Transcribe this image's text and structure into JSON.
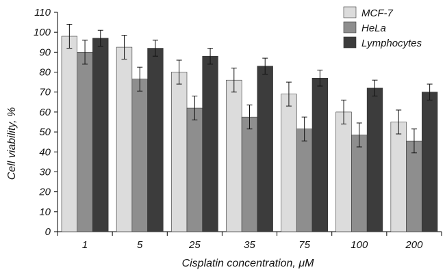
{
  "chart_data": {
    "type": "bar",
    "title": "",
    "xlabel": "Cisplatin concentration, μM",
    "ylabel": "Cell viability, %",
    "categories": [
      "1",
      "5",
      "25",
      "35",
      "75",
      "100",
      "200"
    ],
    "ylim": [
      0,
      110
    ],
    "yticks": [
      0,
      10,
      20,
      30,
      40,
      50,
      60,
      70,
      80,
      90,
      100,
      110
    ],
    "legend_position": "top-right",
    "grid": false,
    "error_bars": true,
    "series": [
      {
        "name": "MCF-7",
        "color": "#dcdcdc",
        "values": [
          98,
          92.5,
          80,
          76,
          69,
          60,
          55
        ],
        "errors": [
          6,
          6,
          6,
          6,
          6,
          6,
          6
        ]
      },
      {
        "name": "HeLa",
        "color": "#8e8e8e",
        "values": [
          90,
          76.5,
          62,
          57.5,
          51.5,
          48.5,
          45.5
        ],
        "errors": [
          6,
          6,
          6,
          6,
          6,
          6,
          6
        ]
      },
      {
        "name": "Lymphocytes",
        "color": "#3c3c3c",
        "values": [
          97,
          92,
          88,
          83,
          77,
          72,
          70
        ],
        "errors": [
          4,
          4,
          4,
          4,
          4,
          4,
          4
        ]
      }
    ]
  }
}
